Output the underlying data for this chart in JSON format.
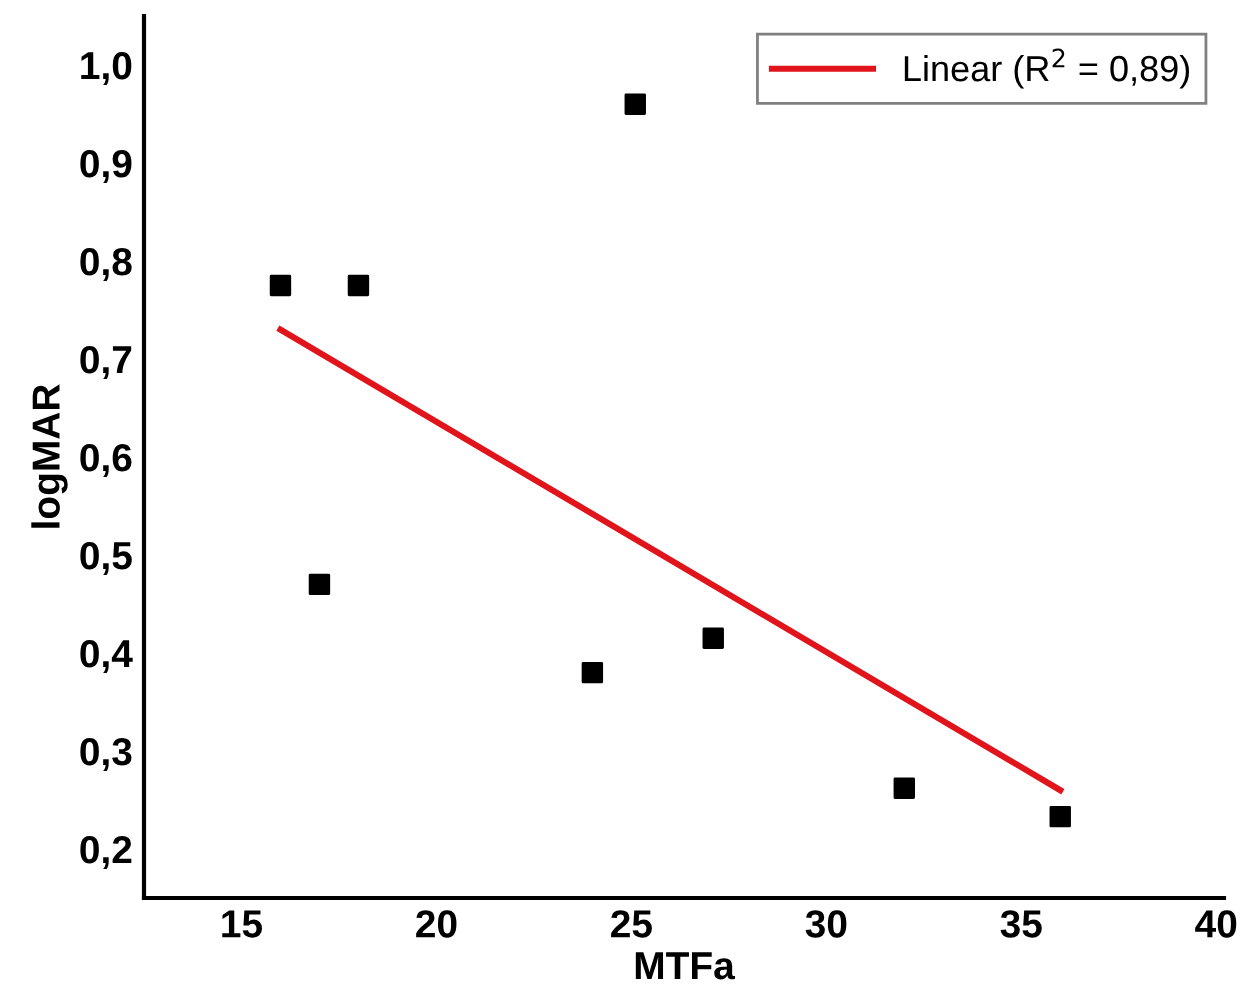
{
  "chart_data": {
    "type": "scatter",
    "xlabel": "MTFa",
    "ylabel": "logMAR",
    "series": [
      {
        "color": "#000000",
        "marker": "square",
        "x": [
          16,
          17,
          18,
          24,
          25.1,
          27.1,
          32,
          36
        ],
        "values": [
          0.775,
          0.47,
          0.775,
          0.38,
          0.96,
          0.415,
          0.262,
          0.233
        ]
      },
      {
        "type": "line",
        "name": "Linear (R$^{2}$ = 0,89)",
        "color": "#e0141a",
        "x": [
          16,
          36
        ],
        "values": [
          0.73,
          0.26
        ]
      }
    ],
    "xlim": [
      12.5,
      40.2
    ],
    "ylim": [
      0.15,
      1.05
    ],
    "xticks": [
      15,
      20,
      25,
      30,
      35,
      40
    ],
    "yticks": [
      {
        "value": 0.2,
        "label": "0,2"
      },
      {
        "value": 0.3,
        "label": "0,3"
      },
      {
        "value": 0.4,
        "label": "0,4"
      },
      {
        "value": 0.5,
        "label": "0,5"
      },
      {
        "value": 0.6,
        "label": "0,6"
      },
      {
        "value": 0.7,
        "label": "0,7"
      },
      {
        "value": 0.8,
        "label": "0,8"
      },
      {
        "value": 0.9,
        "label": "0,9"
      },
      {
        "value": 1.0,
        "label": "1,0"
      }
    ],
    "grid": false,
    "legend": "top right"
  }
}
